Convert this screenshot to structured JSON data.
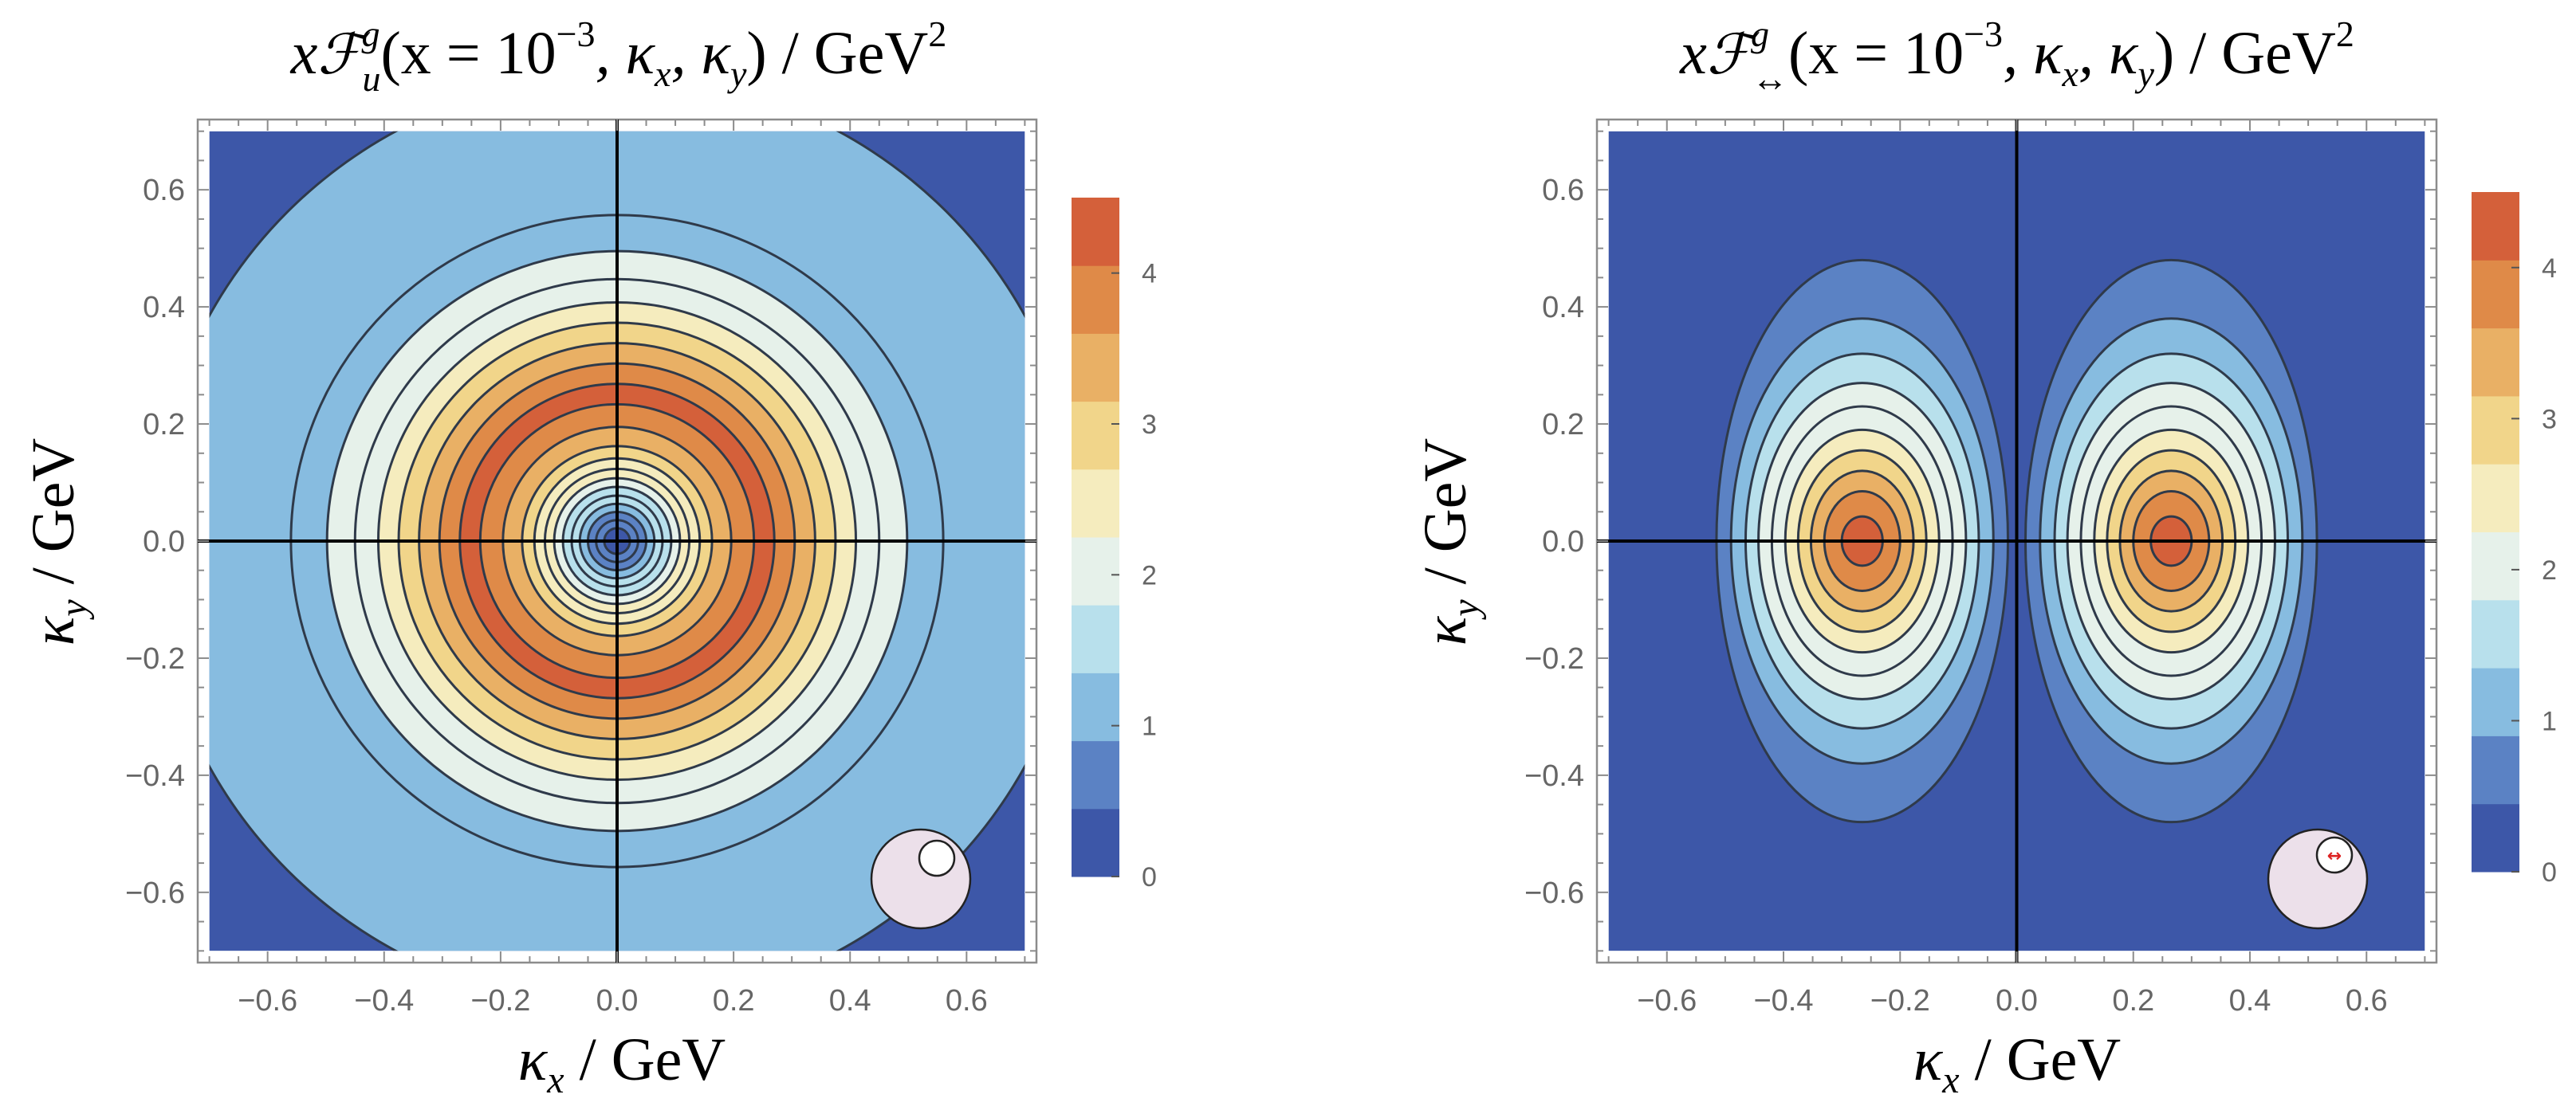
{
  "chart_data": [
    {
      "type": "heatmap",
      "subtype": "filled-contour",
      "id": "left",
      "title": {
        "prefix": "x",
        "symbol": "ℱ",
        "sup": "g",
        "sub": "u",
        "args": "(x = 10",
        "exp": "−3",
        "args2": ", κ",
        "kx_sub": "x",
        "comma": ", κ",
        "ky_sub": "y",
        "close": ") / GeV",
        "unit_exp": "2"
      },
      "xlabel": {
        "sym": "κ",
        "sub": "x",
        "unit": " / GeV"
      },
      "ylabel": {
        "sym": "κ",
        "sub": "y",
        "unit": " / GeV"
      },
      "xlim": [
        -0.72,
        0.72
      ],
      "ylim": [
        -0.72,
        0.72
      ],
      "data_extent": [
        -0.7,
        0.7
      ],
      "xticks": [
        "−0.6",
        "−0.4",
        "−0.2",
        "0.0",
        "0.2",
        "0.4",
        "0.6"
      ],
      "xtick_values": [
        -0.6,
        -0.4,
        -0.2,
        0.0,
        0.2,
        0.4,
        0.6
      ],
      "yticks": [
        "0.6",
        "0.4",
        "0.2",
        "0.0",
        "−0.2",
        "−0.4",
        "−0.6"
      ],
      "ytick_values": [
        0.6,
        0.4,
        0.2,
        0.0,
        -0.2,
        -0.4,
        -0.6
      ],
      "colorbar": {
        "range": [
          0,
          4.5
        ],
        "ticks": [
          "0",
          "1",
          "2",
          "3",
          "4"
        ],
        "tick_values": [
          0,
          1,
          2,
          3,
          4
        ]
      },
      "contour_radii": [
        0.022,
        0.036,
        0.05,
        0.064,
        0.078,
        0.093,
        0.108,
        0.124,
        0.142,
        0.163,
        0.196,
        0.235,
        0.27,
        0.305,
        0.34,
        0.375,
        0.41,
        0.45,
        0.498,
        0.56,
        0.8
      ],
      "level_values": [
        0.15,
        0.5,
        0.8,
        1.1,
        1.4,
        1.7,
        2.0,
        2.3,
        2.6,
        2.9,
        3.3,
        3.8,
        4.3,
        3.8,
        3.4,
        3.0,
        2.6,
        2.2,
        1.8,
        1.3,
        0.9,
        0.4
      ],
      "peak_value": 4.4,
      "inset_icon": "proton-with-unpolarized-quark-icon",
      "inset_marker": ""
    },
    {
      "type": "heatmap",
      "subtype": "filled-contour",
      "id": "right",
      "title": {
        "prefix": "x",
        "symbol": "ℱ",
        "sup": "g",
        "sub": "↔",
        "args": "(x = 10",
        "exp": "−3",
        "args2": ", κ",
        "kx_sub": "x",
        "comma": ", κ",
        "ky_sub": "y",
        "close": ") / GeV",
        "unit_exp": "2"
      },
      "xlabel": {
        "sym": "κ",
        "sub": "x",
        "unit": " / GeV"
      },
      "ylabel": {
        "sym": "κ",
        "sub": "y",
        "unit": " / GeV"
      },
      "xlim": [
        -0.72,
        0.72
      ],
      "ylim": [
        -0.72,
        0.72
      ],
      "data_extent": [
        -0.7,
        0.7
      ],
      "xticks": [
        "−0.6",
        "−0.4",
        "−0.2",
        "0.0",
        "0.2",
        "0.4",
        "0.6"
      ],
      "xtick_values": [
        -0.6,
        -0.4,
        -0.2,
        0.0,
        0.2,
        0.4,
        0.6
      ],
      "yticks": [
        "0.6",
        "0.4",
        "0.2",
        "0.0",
        "−0.2",
        "−0.4",
        "−0.6"
      ],
      "ytick_values": [
        0.6,
        0.4,
        0.2,
        0.0,
        -0.2,
        -0.4,
        -0.6
      ],
      "colorbar": {
        "range": [
          0,
          4.5
        ],
        "ticks": [
          "0",
          "1",
          "2",
          "3",
          "4"
        ],
        "tick_values": [
          0,
          1,
          2,
          3,
          4
        ]
      },
      "lobe_centers": [
        -0.265,
        0.265
      ],
      "lobe_contours": [
        {
          "half_width": 0.035,
          "half_height": 0.042
        },
        {
          "half_width": 0.065,
          "half_height": 0.085
        },
        {
          "half_width": 0.088,
          "half_height": 0.12
        },
        {
          "half_width": 0.11,
          "half_height": 0.155
        },
        {
          "half_width": 0.132,
          "half_height": 0.19
        },
        {
          "half_width": 0.155,
          "half_height": 0.23
        },
        {
          "half_width": 0.178,
          "half_height": 0.27
        },
        {
          "half_width": 0.2,
          "half_height": 0.32
        },
        {
          "half_width": 0.225,
          "half_height": 0.38
        },
        {
          "half_width": 0.25,
          "half_height": 0.48
        }
      ],
      "level_values": [
        4.3,
        3.8,
        3.4,
        3.0,
        2.6,
        2.2,
        1.8,
        1.4,
        1.0,
        0.6,
        0.25
      ],
      "peak_value": 4.4,
      "inset_icon": "proton-with-linearly-polarized-gluon-icon",
      "inset_marker": "↔"
    }
  ],
  "colormap": [
    "#3d57a8",
    "#5b82c4",
    "#87bce0",
    "#b8e0ec",
    "#e6f1ea",
    "#f5ecbe",
    "#f1d58a",
    "#e9b065",
    "#df8a48",
    "#d4603a"
  ],
  "colors": {
    "line": "#2f3a4a",
    "axis": "#000000",
    "frame": "#8c8c8c",
    "tick_text": "#666666",
    "inset_fill": "#ece0ea",
    "inset_marker": "#dd2222"
  }
}
